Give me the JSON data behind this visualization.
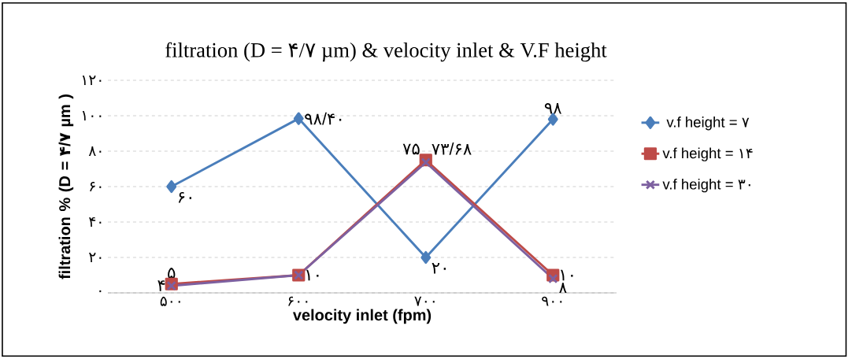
{
  "chart_data": {
    "type": "line",
    "title": "filtration (D = ۴/۷ µm) & velocity inlet & V.F height",
    "xlabel": "velocity inlet (fpm)",
    "ylabel": "filtration  % (D = ۴/۷ µm )",
    "categories": [
      "۵۰۰",
      "۶۰۰",
      "۷۰۰",
      "۹۰۰"
    ],
    "ylim": [
      0,
      120
    ],
    "yticks": [
      {
        "value": 0,
        "label": "۰"
      },
      {
        "value": 20,
        "label": "۲۰"
      },
      {
        "value": 40,
        "label": "۴۰"
      },
      {
        "value": 60,
        "label": "۶۰"
      },
      {
        "value": 80,
        "label": "۸۰"
      },
      {
        "value": 100,
        "label": "۱۰۰"
      },
      {
        "value": 120,
        "label": "۱۲۰"
      }
    ],
    "grid": "y",
    "legend": "right",
    "line_style": "solid",
    "series": [
      {
        "name": "v.f height = ۷",
        "color": "#4a7ebb",
        "marker": "diamond",
        "values": [
          60,
          98.4,
          20,
          98
        ],
        "value_labels": [
          "۶۰",
          "۹۸/۴۰",
          "۲۰",
          "۹۸"
        ]
      },
      {
        "name": "v.f height = ۱۴",
        "color": "#be4b48",
        "marker": "square",
        "values": [
          5,
          10,
          75,
          10
        ],
        "value_labels": [
          "۵",
          "۱۰",
          "۷۵",
          "۱۰"
        ]
      },
      {
        "name": "v.f height = ۳۰",
        "color": "#7d60a0",
        "marker": "cross",
        "values": [
          4,
          10,
          73.68,
          8
        ],
        "value_labels": [
          "۴",
          null,
          "۷۳/۶۸",
          "۸"
        ]
      }
    ]
  }
}
